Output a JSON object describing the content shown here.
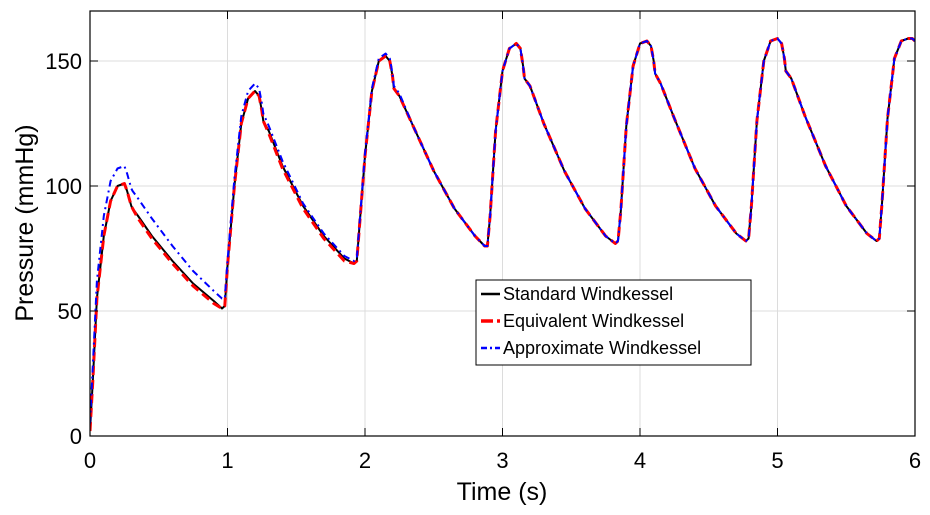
{
  "chart_data": {
    "type": "line",
    "title": "",
    "xlabel": "Time (s)",
    "ylabel": "Pressure (mmHg)",
    "xlim": [
      0,
      6
    ],
    "ylim": [
      0,
      170
    ],
    "xticks": [
      0,
      1,
      2,
      3,
      4,
      5,
      6
    ],
    "yticks": [
      0,
      50,
      100,
      150
    ],
    "grid": true,
    "legend_position": "center-right",
    "series": [
      {
        "name": "Standard Windkessel",
        "color": "#000000",
        "style": "solid",
        "x": [
          0,
          0.02,
          0.05,
          0.1,
          0.15,
          0.2,
          0.25,
          0.27,
          0.3,
          0.31,
          0.35,
          0.45,
          0.6,
          0.75,
          0.9,
          0.96,
          0.98,
          1.0,
          1.05,
          1.1,
          1.15,
          1.2,
          1.23,
          1.25,
          1.26,
          1.3,
          1.4,
          1.55,
          1.7,
          1.85,
          1.92,
          1.94,
          1.96,
          2.0,
          2.05,
          2.1,
          2.15,
          2.18,
          2.2,
          2.21,
          2.25,
          2.35,
          2.5,
          2.65,
          2.8,
          2.87,
          2.89,
          2.91,
          2.95,
          3.0,
          3.05,
          3.1,
          3.13,
          3.15,
          3.16,
          3.2,
          3.3,
          3.45,
          3.6,
          3.75,
          3.82,
          3.84,
          3.86,
          3.9,
          3.95,
          4.0,
          4.05,
          4.08,
          4.1,
          4.11,
          4.15,
          4.25,
          4.4,
          4.55,
          4.7,
          4.77,
          4.79,
          4.81,
          4.85,
          4.9,
          4.95,
          5.0,
          5.03,
          5.05,
          5.06,
          5.1,
          5.2,
          5.35,
          5.5,
          5.65,
          5.72,
          5.74,
          5.76,
          5.8,
          5.85,
          5.9,
          5.95,
          5.98,
          6.0
        ],
        "y": [
          2,
          22,
          55,
          80,
          94,
          100,
          101,
          98,
          92,
          91,
          88,
          80,
          70,
          61,
          54,
          51,
          52,
          68,
          100,
          125,
          135,
          138,
          136,
          130,
          126,
          122,
          108,
          92,
          80,
          71,
          69,
          70,
          84,
          112,
          138,
          150,
          152,
          150,
          144,
          139,
          136,
          124,
          106,
          91,
          80,
          76,
          76,
          88,
          122,
          146,
          155,
          157,
          155,
          148,
          143,
          140,
          125,
          106,
          91,
          80,
          77,
          78,
          90,
          124,
          148,
          157,
          158,
          156,
          150,
          145,
          141,
          127,
          107,
          92,
          81,
          78,
          79,
          92,
          126,
          150,
          158,
          159,
          157,
          151,
          146,
          143,
          128,
          108,
          92,
          81,
          78,
          79,
          93,
          127,
          151,
          158,
          159,
          159,
          158
        ]
      },
      {
        "name": "Equivalent Windkessel",
        "color": "#ff0000",
        "style": "dashed",
        "x": [
          0,
          0.02,
          0.05,
          0.1,
          0.15,
          0.2,
          0.25,
          0.27,
          0.3,
          0.31,
          0.35,
          0.45,
          0.6,
          0.75,
          0.9,
          0.96,
          0.98,
          1.0,
          1.05,
          1.1,
          1.15,
          1.2,
          1.23,
          1.25,
          1.26,
          1.3,
          1.4,
          1.55,
          1.7,
          1.85,
          1.92,
          1.94,
          1.96,
          2.0,
          2.05,
          2.1,
          2.15,
          2.18,
          2.2,
          2.21,
          2.25,
          2.35,
          2.5,
          2.65,
          2.8,
          2.87,
          2.89,
          2.91,
          2.95,
          3.0,
          3.05,
          3.1,
          3.13,
          3.15,
          3.16,
          3.2,
          3.3,
          3.45,
          3.6,
          3.75,
          3.82,
          3.84,
          3.86,
          3.9,
          3.95,
          4.0,
          4.05,
          4.08,
          4.1,
          4.11,
          4.15,
          4.25,
          4.4,
          4.55,
          4.7,
          4.77,
          4.79,
          4.81,
          4.85,
          4.9,
          4.95,
          5.0,
          5.03,
          5.05,
          5.06,
          5.1,
          5.2,
          5.35,
          5.5,
          5.65,
          5.72,
          5.74,
          5.76,
          5.8,
          5.85,
          5.9,
          5.95,
          5.98,
          6.0
        ],
        "y": [
          2,
          22,
          55,
          80,
          94,
          100,
          101,
          98,
          92,
          91,
          87,
          79,
          69,
          60,
          53,
          51,
          52,
          68,
          100,
          125,
          135,
          138,
          136,
          130,
          126,
          121,
          107,
          91,
          79,
          70,
          69,
          70,
          84,
          112,
          138,
          150,
          152,
          150,
          144,
          139,
          136,
          124,
          106,
          91,
          80,
          76,
          76,
          88,
          122,
          146,
          155,
          157,
          155,
          148,
          143,
          140,
          125,
          106,
          91,
          80,
          77,
          78,
          90,
          124,
          148,
          157,
          158,
          156,
          150,
          145,
          141,
          127,
          107,
          92,
          81,
          78,
          79,
          92,
          126,
          150,
          158,
          159,
          157,
          151,
          146,
          143,
          128,
          108,
          92,
          81,
          78,
          79,
          93,
          127,
          151,
          158,
          159,
          159,
          158
        ]
      },
      {
        "name": "Approximate Windkessel",
        "color": "#0000ff",
        "style": "dashdot",
        "x": [
          0,
          0.02,
          0.05,
          0.1,
          0.15,
          0.2,
          0.25,
          0.27,
          0.3,
          0.31,
          0.35,
          0.45,
          0.6,
          0.75,
          0.9,
          0.96,
          0.98,
          1.0,
          1.05,
          1.1,
          1.15,
          1.2,
          1.23,
          1.25,
          1.26,
          1.3,
          1.4,
          1.55,
          1.7,
          1.85,
          1.92,
          1.94,
          1.96,
          2.0,
          2.05,
          2.1,
          2.15,
          2.18,
          2.2,
          2.21,
          2.25,
          2.35,
          2.5,
          2.65,
          2.8,
          2.87,
          2.89,
          2.91,
          2.95,
          3.0,
          3.05,
          3.1,
          3.13,
          3.15,
          3.16,
          3.2,
          3.3,
          3.45,
          3.6,
          3.75,
          3.82,
          3.84,
          3.86,
          3.9,
          3.95,
          4.0,
          4.05,
          4.08,
          4.1,
          4.11,
          4.15,
          4.25,
          4.4,
          4.55,
          4.7,
          4.77,
          4.79,
          4.81,
          4.85,
          4.9,
          4.95,
          5.0,
          5.03,
          5.05,
          5.06,
          5.1,
          5.2,
          5.35,
          5.5,
          5.65,
          5.72,
          5.74,
          5.76,
          5.8,
          5.85,
          5.9,
          5.95,
          5.98,
          6.0
        ],
        "y": [
          5,
          28,
          62,
          88,
          102,
          107,
          108,
          105,
          99,
          98,
          95,
          87,
          76,
          66,
          58,
          55,
          55,
          70,
          103,
          128,
          138,
          141,
          139,
          133,
          129,
          124,
          110,
          93,
          81,
          72,
          70,
          71,
          85,
          113,
          139,
          151,
          153,
          151,
          145,
          140,
          137,
          124,
          106,
          91,
          80,
          76,
          76,
          88,
          122,
          146,
          155,
          157,
          155,
          148,
          143,
          140,
          125,
          106,
          91,
          80,
          77,
          78,
          90,
          124,
          148,
          157,
          158,
          156,
          150,
          145,
          141,
          127,
          107,
          92,
          81,
          78,
          79,
          92,
          126,
          150,
          158,
          159,
          157,
          151,
          146,
          143,
          128,
          108,
          92,
          81,
          78,
          79,
          93,
          127,
          151,
          158,
          159,
          159,
          158
        ]
      }
    ]
  }
}
